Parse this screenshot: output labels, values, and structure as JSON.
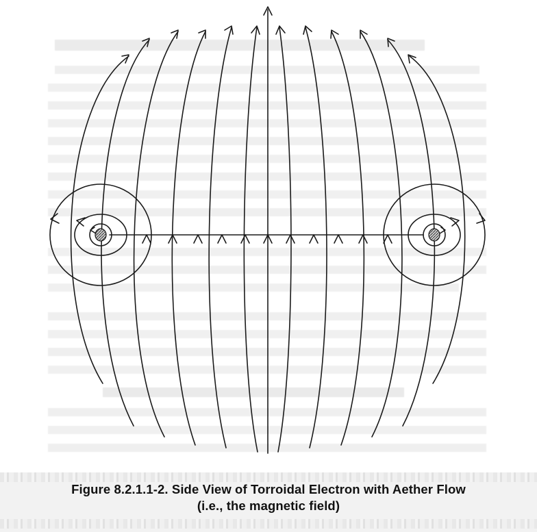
{
  "figure": {
    "caption_line1": "Figure 8.2.1.1-2. Side View of Torroidal Electron with Aether Flow",
    "caption_line2": "(i.e., the magnetic field)"
  },
  "colors": {
    "ink": "#1a1a1a",
    "bleed_text": "#d9d9d9",
    "torus_fill": "#8a8a8a"
  }
}
